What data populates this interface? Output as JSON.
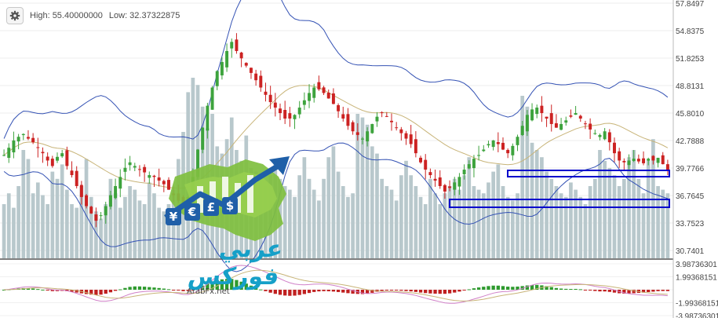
{
  "header": {
    "settings_icon": "gear-icon",
    "high_label": "High:",
    "high_value": "55.40000000",
    "low_label": "Low:",
    "low_value": "32.37322875"
  },
  "price_axis": {
    "ticks": [
      "57.8497",
      "54.8375",
      "51.8253",
      "48.8131",
      "45.8010",
      "42.7888",
      "39.7766",
      "36.7645",
      "33.7523",
      "30.7401"
    ]
  },
  "macd_axis": {
    "ticks": [
      "3.98736301",
      "1.99368151",
      "",
      "-1.99368151",
      "-3.98736301"
    ]
  },
  "logo": {
    "arabic_text": "عربي فوركس",
    "url": "ArabFx.net",
    "currency_symbols": [
      "¥",
      "€",
      "£",
      "$"
    ]
  },
  "colors": {
    "up_candle": "#3da33d",
    "down_candle": "#cc2222",
    "volume": "#b8c8cc",
    "bollinger": "#3452b4",
    "moving_average": "#c8b478",
    "highlight_box": "#0000cc",
    "macd_positive": "#2e9a2e",
    "macd_negative": "#c02020"
  },
  "chart_data": {
    "type": "candlestick",
    "price_range": [
      30.7401,
      57.8497
    ],
    "macd_range": [
      -3.98736301,
      3.98736301
    ],
    "closes": [
      41.2,
      42.0,
      42.8,
      43.2,
      43.5,
      43.0,
      42.6,
      42.0,
      41.4,
      40.6,
      40.0,
      41.0,
      41.4,
      40.0,
      39.0,
      37.8,
      36.6,
      35.6,
      34.8,
      34.0,
      34.6,
      35.6,
      36.8,
      37.8,
      38.8,
      39.8,
      40.4,
      40.0,
      39.6,
      39.3,
      39.0,
      38.8,
      38.4,
      38.0,
      37.4,
      36.8,
      36.2,
      35.4,
      36.6,
      38.8,
      41.8,
      44.2,
      46.6,
      48.6,
      50.4,
      51.4,
      52.6,
      53.6,
      52.6,
      51.8,
      51.0,
      50.2,
      49.4,
      48.6,
      47.8,
      47.0,
      46.4,
      45.8,
      45.2,
      45.2,
      45.6,
      46.4,
      47.2,
      48.0,
      48.6,
      48.4,
      48.0,
      47.4,
      46.8,
      46.0,
      45.2,
      44.4,
      43.8,
      43.4,
      43.0,
      43.8,
      44.6,
      45.4,
      45.8,
      45.4,
      44.8,
      44.2,
      43.6,
      43.0,
      42.4,
      41.4,
      40.4,
      39.6,
      39.0,
      38.4,
      37.8,
      37.2,
      37.6,
      38.2,
      38.8,
      39.6,
      40.2,
      40.8,
      41.2,
      41.8,
      42.4,
      42.8,
      42.4,
      41.8,
      41.4,
      42.2,
      43.2,
      44.4,
      45.6,
      46.2,
      46.4,
      45.8,
      45.2,
      44.6,
      44.2,
      44.6,
      45.0,
      45.4,
      45.8,
      45.2,
      44.6,
      44.0,
      43.6,
      43.4,
      43.8,
      42.6,
      41.4,
      40.6,
      40.4,
      40.6,
      40.8,
      40.5,
      40.3,
      40.8,
      40.6,
      40.9,
      40.2,
      39.6
    ],
    "volume_range": [
      0,
      100
    ],
    "volumes": [
      30,
      36,
      28,
      40,
      60,
      55,
      36,
      42,
      35,
      30,
      48,
      44,
      52,
      38,
      30,
      28,
      40,
      55,
      34,
      26,
      22,
      30,
      44,
      36,
      28,
      34,
      40,
      38,
      32,
      30,
      42,
      36,
      28,
      26,
      30,
      38,
      55,
      70,
      92,
      100,
      96,
      84,
      72,
      80,
      62,
      58,
      66,
      78,
      60,
      54,
      68,
      50,
      48,
      44,
      40,
      46,
      52,
      44,
      40,
      38,
      34,
      46,
      56,
      44,
      38,
      32,
      44,
      56,
      62,
      48,
      40,
      34,
      36,
      80,
      78,
      74,
      62,
      58,
      44,
      40,
      38,
      32,
      46,
      54,
      46,
      40,
      34,
      30,
      44,
      36,
      30,
      36,
      40,
      44,
      38,
      46,
      56,
      40,
      38,
      36,
      42,
      48,
      52,
      40,
      34,
      32,
      36,
      90,
      84,
      64,
      60,
      56,
      48,
      44,
      40,
      36,
      34,
      42,
      38,
      34,
      30,
      40,
      44,
      60,
      54,
      50,
      46,
      40,
      44,
      56,
      60,
      44,
      36,
      54,
      66,
      40,
      38,
      36
    ]
  }
}
